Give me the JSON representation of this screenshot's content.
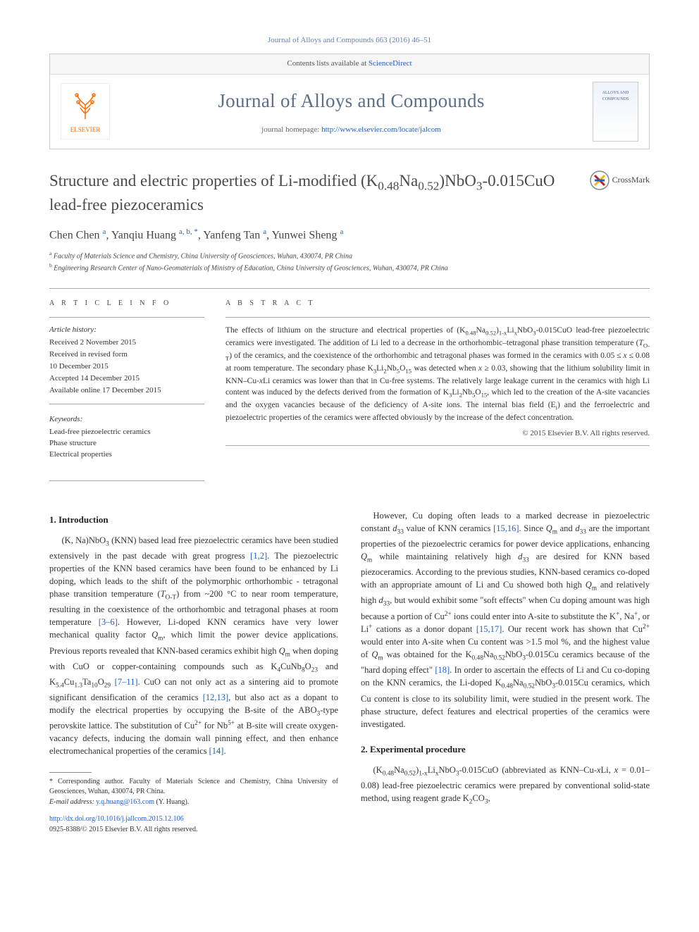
{
  "journal_ref": "Journal of Alloys and Compounds 663 (2016) 46–51",
  "contents_line_pre": "Contents lists available at ",
  "contents_line_link": "ScienceDirect",
  "journal_title": "Journal of Alloys and Compounds",
  "homepage_pre": "journal homepage: ",
  "homepage_url": "http://www.elsevier.com/locate/jalcom",
  "cover_text": "ALLOYS AND COMPOUNDS",
  "elsevier_label": "ELSEVIER",
  "article_title_html": "Structure and electric properties of Li-modified (K<sub>0.48</sub>Na<sub>0.52</sub>)NbO<sub>3</sub>-0.015CuO lead-free piezoceramics",
  "crossmark_label": "CrossMark",
  "authors_html": "Chen Chen <sup>a</sup>, Yanqiu Huang <sup>a, b, *</sup>, Yanfeng Tan <sup>a</sup>, Yunwei Sheng <sup>a</sup>",
  "affiliations": [
    {
      "key": "a",
      "text": "Faculty of Materials Science and Chemistry, China University of Geosciences, Wuhan, 430074, PR China"
    },
    {
      "key": "b",
      "text": "Engineering Research Center of Nano-Geomaterials of Ministry of Education, China University of Geosciences, Wuhan, 430074, PR China"
    }
  ],
  "info_heading": "A R T I C L E   I N F O",
  "abstract_heading": "A B S T R A C T",
  "history_label": "Article history:",
  "history": [
    "Received 2 November 2015",
    "Received in revised form",
    "10 December 2015",
    "Accepted 14 December 2015",
    "Available online 17 December 2015"
  ],
  "keywords_label": "Keywords:",
  "keywords": [
    "Lead-free piezoelectric ceramics",
    "Phase structure",
    "Electrical properties"
  ],
  "abstract_html": "The effects of lithium on the structure and electrical properties of (K<sub>0.48</sub>Na<sub>0.52</sub>)<sub>1-x</sub>Li<sub>x</sub>NbO<sub>3</sub>-0.015CuO lead-free piezoelectric ceramics were investigated. The addition of Li led to a decrease in the orthorhombic–tetragonal phase transition temperature (<i>T</i><sub>O-T</sub>) of the ceramics, and the coexistence of the orthorhombic and tetragonal phases was formed in the ceramics with 0.05 ≤ <i>x</i> ≤ 0.08 at room temperature. The secondary phase K<sub>3</sub>Li<sub>2</sub>Nb<sub>5</sub>O<sub>15</sub> was detected when <i>x</i> ≥ 0.03, showing that the lithium solubility limit in KNN–Cu-<i>x</i>Li ceramics was lower than that in Cu-free systems. The relatively large leakage current in the ceramics with high Li content was induced by the defects derived from the formation of K<sub>3</sub>Li<sub>2</sub>Nb<sub>5</sub>O<sub>15</sub>, which led to the creation of the A-site vacancies and the oxygen vacancies because of the deficiency of A-site ions. The internal bias field (E<sub>i</sub>) and the ferroelectric and piezoelectric properties of the ceramics were affected obviously by the increase of the defect concentration.",
  "copyright": "© 2015 Elsevier B.V. All rights reserved.",
  "section1_heading": "1. Introduction",
  "intro_p1_html": "(K, Na)NbO<sub>3</sub> (KNN) based lead free piezoelectric ceramics have been studied extensively in the past decade with great progress <a class=\"ref\" href=\"#\">[1,2]</a>. The piezoelectric properties of the KNN based ceramics have been found to be enhanced by Li doping, which leads to the shift of the polymorphic orthorhombic - tetragonal phase transition temperature (<i>T</i><sub>O-T</sub>) from ~200 °C to near room temperature, resulting in the coexistence of the orthorhombic and tetragonal phases at room temperature <a class=\"ref\" href=\"#\">[3–6]</a>. However, Li-doped KNN ceramics have very lower mechanical quality factor <i>Q</i><sub>m</sub>, which limit the power device applications. Previous reports revealed that KNN-based ceramics exhibit high <i>Q</i><sub>m</sub> when doping with CuO or copper-containing compounds such as K<sub>4</sub>CuNb<sub>8</sub>O<sub>23</sub> and K<sub>5.4</sub>Cu<sub>1.3</sub>Ta<sub>10</sub>O<sub>29</sub> <a class=\"ref\" href=\"#\">[7–11]</a>. CuO can not only act as a sintering aid to promote significant densification of the ceramics <a class=\"ref\" href=\"#\">[12,13]</a>, but also act as a dopant to modify the electrical properties by occupying the B-site of the ABO<sub>3</sub>-type perovskite lattice. The substitution of Cu<sup>2+</sup> for Nb<sup>5+</sup> at B-site will create oxygen-vacancy defects, inducing the domain wall pinning effect, and then enhance electromechanical properties of the ceramics <a class=\"ref\" href=\"#\">[14]</a>.",
  "intro_p2_html": "However, Cu doping often leads to a marked decrease in piezoelectric constant <i>d</i><sub>33</sub> value of KNN ceramics <a class=\"ref\" href=\"#\">[15,16]</a>. Since <i>Q</i><sub>m</sub> and <i>d</i><sub>33</sub> are the important properties of the piezoelectric ceramics for power device applications, enhancing <i>Q</i><sub>m</sub> while maintaining relatively high <i>d</i><sub>33</sub> are desired for KNN based piezoceramics. According to the previous studies, KNN-based ceramics co-doped with an appropriate amount of Li and Cu showed both high <i>Q</i><sub>m</sub> and relatively high <i>d</i><sub>33</sub>, but would exhibit some \"soft effects\" when Cu doping amount was high because a portion of Cu<sup>2+</sup> ions could enter into A-site to substitute the K<sup>+</sup>, Na<sup>+</sup>, or Li<sup>+</sup> cations as a donor dopant <a class=\"ref\" href=\"#\">[15,17]</a>. Our recent work has shown that Cu<sup>2+</sup> would enter into A-site when Cu content was >1.5 mol %, and the highest value of <i>Q</i><sub>m</sub> was obtained for the K<sub>0.48</sub>Na<sub>0.52</sub>NbO<sub>3</sub>-0.015Cu ceramics because of the \"hard doping effect\" <a class=\"ref\" href=\"#\">[18]</a>. In order to ascertain the effects of Li and Cu co-doping on the KNN ceramics, the Li-doped K<sub>0.48</sub>Na<sub>0.52</sub>NbO<sub>3</sub>-0.015Cu ceramics, which Cu content is close to its solubility limit, were studied in the present work. The phase structure, defect features and electrical properties of the ceramics were investigated.",
  "section2_heading": "2. Experimental procedure",
  "exp_p1_html": "(K<sub>0.48</sub>Na<sub>0.52</sub>)<sub>1-x</sub>Li<sub>x</sub>NbO<sub>3</sub>-0.015CuO (abbreviated as KNN–Cu-<i>x</i>Li, <i>x</i> = 0.01–0.08) lead-free piezoelectric ceramics were prepared by conventional solid-state method, using reagent grade K<sub>2</sub>CO<sub>3</sub>,",
  "corr_author": "* Corresponding author. Faculty of Materials Science and Chemistry, China University of Geosciences, Wuhan, 430074, PR China.",
  "email_label": "E-mail address: ",
  "email": "y.q.huang@163.com",
  "email_owner": " (Y. Huang).",
  "doi_url": "http://dx.doi.org/10.1016/j.jallcom.2015.12.106",
  "issn_line": "0925-8388/© 2015 Elsevier B.V. All rights reserved.",
  "colors": {
    "link": "#2060c0",
    "journal_title": "#5d6e87",
    "text": "#333333",
    "border": "#cccccc"
  }
}
